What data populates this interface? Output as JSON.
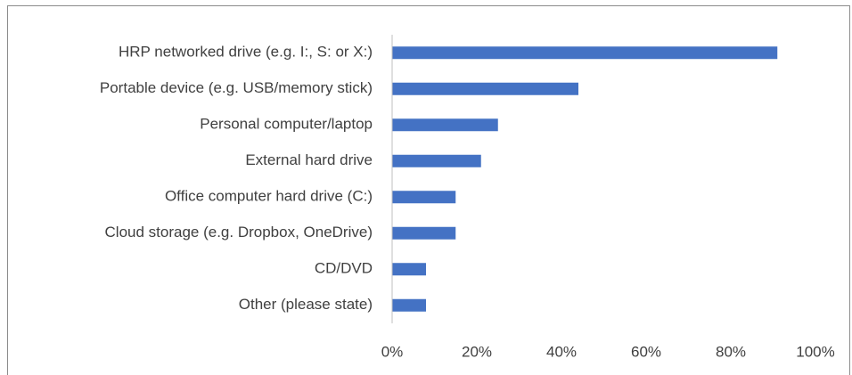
{
  "chart_data": {
    "type": "bar",
    "orientation": "horizontal",
    "categories": [
      "HRP networked drive (e.g. I:, S: or X:)",
      "Portable device (e.g. USB/memory stick)",
      "Personal computer/laptop",
      "External hard drive",
      "Office computer hard drive (C:)",
      "Cloud storage (e.g. Dropbox, OneDrive)",
      "CD/DVD",
      "Other (please state)"
    ],
    "values": [
      91,
      44,
      25,
      21,
      15,
      15,
      8,
      8
    ],
    "color": "#4472c4",
    "xlim": [
      0,
      100
    ],
    "xticks": [
      {
        "value": 0,
        "label": "0%"
      },
      {
        "value": 20,
        "label": "20%"
      },
      {
        "value": 40,
        "label": "40%"
      },
      {
        "value": 60,
        "label": "60%"
      },
      {
        "value": 80,
        "label": "80%"
      },
      {
        "value": 100,
        "label": "100%"
      }
    ],
    "grid": false
  }
}
